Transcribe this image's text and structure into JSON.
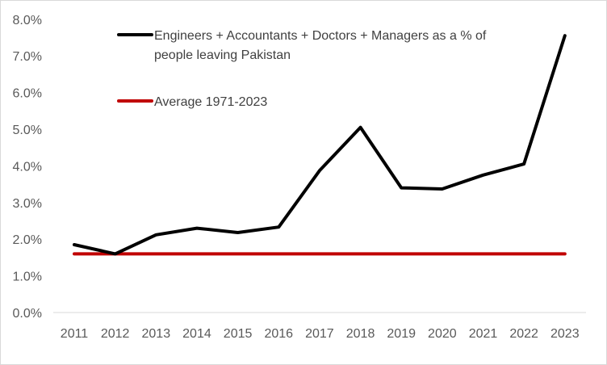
{
  "chart_data": {
    "type": "line",
    "title": "",
    "xlabel": "",
    "ylabel": "",
    "x": [
      "2011",
      "2012",
      "2013",
      "2014",
      "2015",
      "2016",
      "2017",
      "2018",
      "2019",
      "2020",
      "2021",
      "2022",
      "2023"
    ],
    "ylim": [
      0,
      8
    ],
    "yticks": [
      "0.0%",
      "1.0%",
      "2.0%",
      "3.0%",
      "4.0%",
      "5.0%",
      "6.0%",
      "7.0%",
      "8.0%"
    ],
    "grid": false,
    "legend_position": "top-center",
    "series": [
      {
        "name": "Engineers + Accountants + Doctors + Managers as a % of people leaving Pakistan",
        "name_lines": [
          "Engineers + Accountants + Doctors + Managers as a % of",
          "people leaving Pakistan"
        ],
        "color": "#000000",
        "values": [
          1.85,
          1.6,
          2.12,
          2.3,
          2.18,
          2.33,
          3.87,
          5.05,
          3.4,
          3.37,
          3.75,
          4.05,
          7.55
        ]
      },
      {
        "name": "Average 1971-2023",
        "name_lines": [
          "Average 1971-2023"
        ],
        "color": "#c00000",
        "values": [
          1.6,
          1.6,
          1.6,
          1.6,
          1.6,
          1.6,
          1.6,
          1.6,
          1.6,
          1.6,
          1.6,
          1.6,
          1.6
        ]
      }
    ]
  }
}
